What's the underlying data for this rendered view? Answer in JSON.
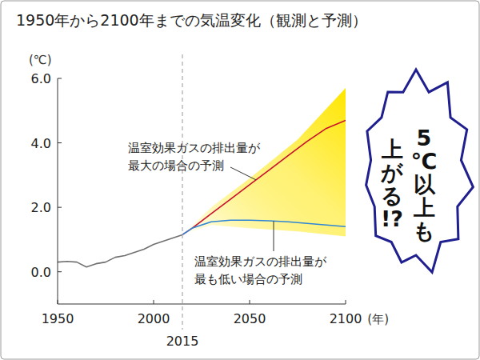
{
  "chart_data": {
    "type": "line",
    "title": "1950年から2100年までの気温変化（観測と予測）",
    "xlabel": "(年)",
    "ylabel": "(℃)",
    "xlim": [
      1950,
      2100
    ],
    "ylim": [
      -1,
      6
    ],
    "xticks": [
      1950,
      2000,
      2050,
      2100
    ],
    "yticks": [
      {
        "value": 0,
        "label": "0.0"
      },
      {
        "value": 2,
        "label": "2.0"
      },
      {
        "value": 4,
        "label": "4.0"
      },
      {
        "value": 6,
        "label": "6.0"
      }
    ],
    "grid": false,
    "vlines": [
      {
        "x": 2015,
        "line_style": "dashed"
      }
    ],
    "band": {
      "color": "#ffe600",
      "x": [
        2015,
        2030,
        2050,
        2075,
        2100
      ],
      "low": [
        1.15,
        1.45,
        1.35,
        1.25,
        1.1
      ],
      "high": [
        1.15,
        2.0,
        2.9,
        4.1,
        5.7
      ]
    },
    "series": [
      {
        "color": "#707070",
        "x": [
          1950,
          1955,
          1960,
          1965,
          1970,
          1975,
          1980,
          1985,
          1990,
          1995,
          2000,
          2005,
          2010,
          2015
        ],
        "values": [
          0.3,
          0.32,
          0.3,
          0.15,
          0.25,
          0.3,
          0.45,
          0.5,
          0.6,
          0.7,
          0.85,
          0.95,
          1.05,
          1.15
        ]
      },
      {
        "name": "温室効果ガスの排出量が最大の場合の予測",
        "color": "#c8102e",
        "x": [
          2015,
          2020,
          2030,
          2040,
          2050,
          2060,
          2070,
          2080,
          2090,
          2100
        ],
        "values": [
          1.15,
          1.35,
          1.8,
          2.25,
          2.7,
          3.15,
          3.6,
          4.05,
          4.45,
          4.7
        ]
      },
      {
        "name": "温室効果ガスの排出量が最も低い場合の予測",
        "color": "#2f86d6",
        "x": [
          2015,
          2020,
          2030,
          2040,
          2050,
          2060,
          2070,
          2080,
          2090,
          2100
        ],
        "values": [
          1.15,
          1.35,
          1.55,
          1.6,
          1.6,
          1.58,
          1.55,
          1.5,
          1.45,
          1.4
        ]
      }
    ],
    "callout": "5℃以上も上がる!?"
  }
}
